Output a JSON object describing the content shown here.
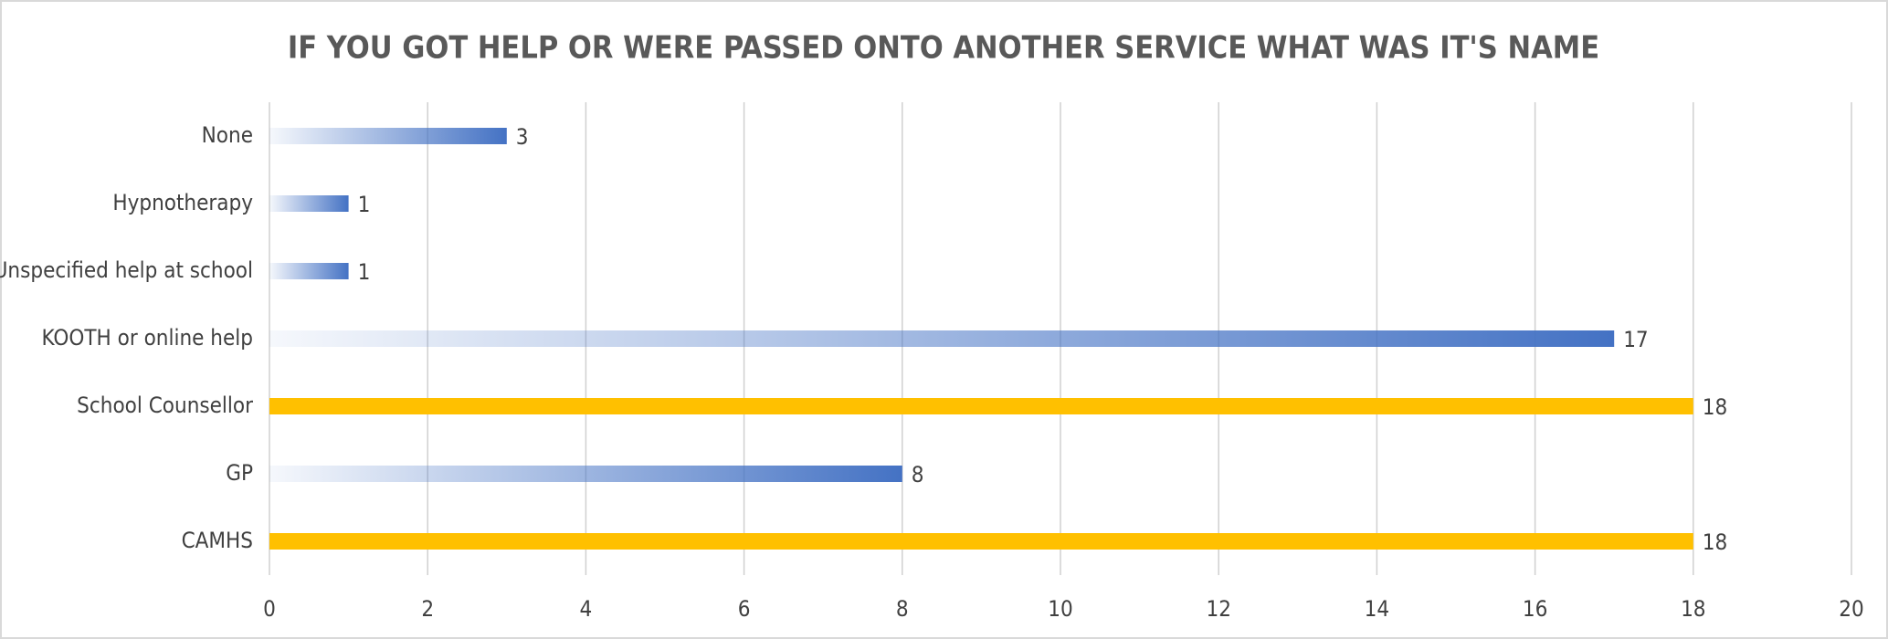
{
  "chart_data": {
    "type": "hbar",
    "title": "IF YOU GOT HELP OR WERE PASSED ONTO ANOTHER SERVICE WHAT WAS IT'S NAME",
    "categories": [
      "None",
      "Hypnotherapy",
      "Unspecified help at school",
      "KOOTH or online help",
      "School Counsellor",
      "GP",
      "CAMHS"
    ],
    "values": [
      3,
      1,
      1,
      17,
      18,
      8,
      18
    ],
    "colors": [
      "#4472c4",
      "#4472c4",
      "#4472c4",
      "#4472c4",
      "#ffc000",
      "#4472c4",
      "#ffc000"
    ],
    "fills": [
      "gradient",
      "gradient",
      "gradient",
      "gradient",
      "solid",
      "gradient",
      "solid"
    ],
    "xlim": [
      0,
      20
    ],
    "xticks": [
      0,
      2,
      4,
      6,
      8,
      10,
      12,
      14,
      16,
      18,
      20
    ],
    "grid": true
  }
}
